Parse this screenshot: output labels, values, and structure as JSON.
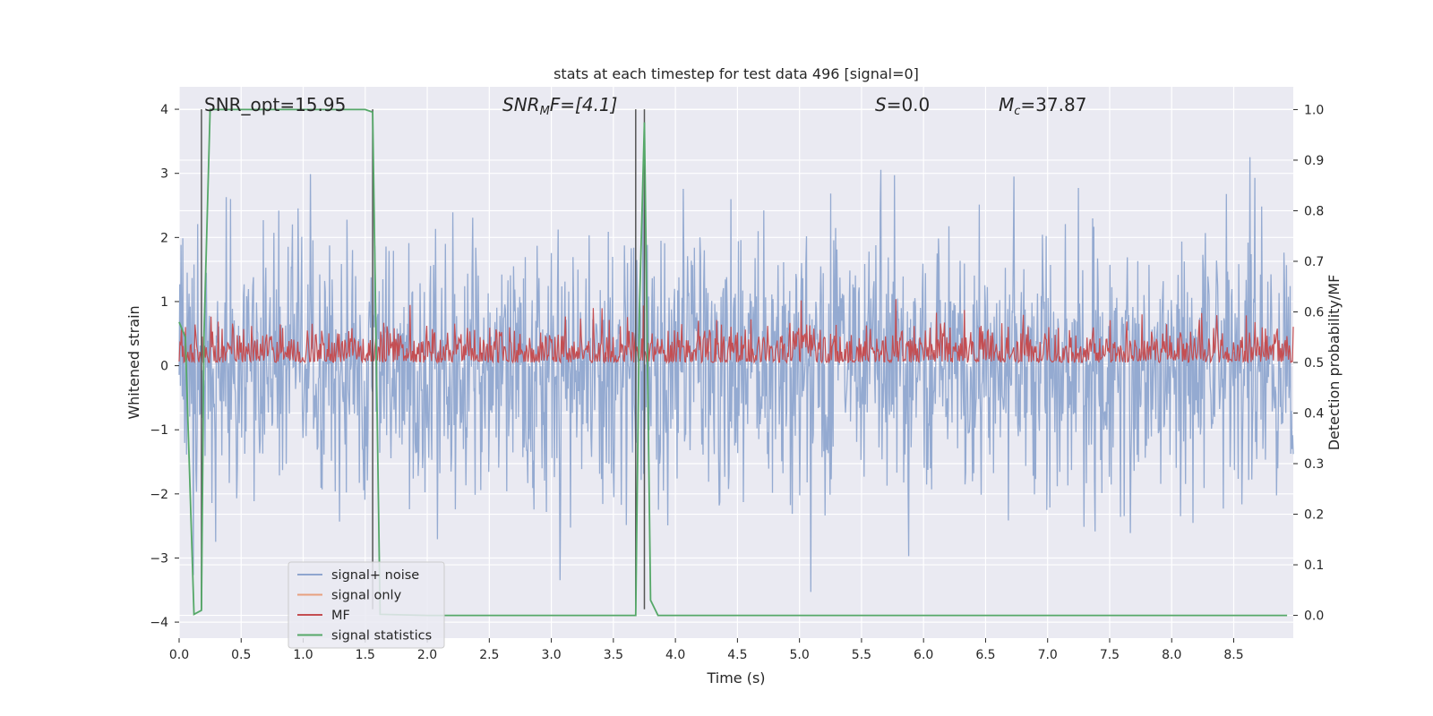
{
  "chart_data": {
    "type": "line",
    "title": "stats at each timestep for test data 496 [signal=0]",
    "xlabel": "Time (s)",
    "ylabel": "Whitened strain",
    "y2label": "Detection probability/MF",
    "xlim": [
      0.0,
      8.98
    ],
    "ylim": [
      -4.25,
      4.35
    ],
    "y2lim": [
      -0.045,
      1.045
    ],
    "xticks": [
      "0.0",
      "0.5",
      "1.0",
      "1.5",
      "2.0",
      "2.5",
      "3.0",
      "3.5",
      "4.0",
      "4.5",
      "5.0",
      "5.5",
      "6.0",
      "6.5",
      "7.0",
      "7.5",
      "8.0",
      "8.5"
    ],
    "yticks": [
      "4",
      "3",
      "2",
      "1",
      "0",
      "−1",
      "−2",
      "−3",
      "−4"
    ],
    "y2ticks": [
      "1.0",
      "0.9",
      "0.8",
      "0.7",
      "0.6",
      "0.5",
      "0.4",
      "0.3",
      "0.2",
      "0.1",
      "0.0"
    ],
    "grid": true,
    "legend_position": "lower-left",
    "annotations": {
      "snr_opt": "SNR_opt=15.95",
      "snr_mf_main": "SNR",
      "snr_mf_sub": "M",
      "snr_mf_rest": "F=[4.1]",
      "s_label": "S",
      "s_value": "=0.0",
      "mc_main": "M",
      "mc_sub": "c",
      "mc_value": "=37.87"
    },
    "markers_x": [
      0.18,
      1.56,
      3.68,
      3.75
    ],
    "colors": {
      "noise": "#8fa6cf",
      "signal_only": "#e8a07f",
      "mf": "#c44e52",
      "stats": "#55a868",
      "marker": "#555555",
      "plot_bg": "#eaeaf2",
      "grid": "#ffffff"
    },
    "series": [
      {
        "name": "signal+ noise",
        "description_values": "whitened noise, approx range -3.8 to 4.0",
        "seed": 496,
        "sigma": 1.0
      },
      {
        "name": "signal only",
        "values": []
      },
      {
        "name": "MF",
        "axis": "y2",
        "base": 0.52,
        "spread_low": 0.5,
        "spread_high": 0.64
      },
      {
        "name": "signal statistics",
        "axis": "y2",
        "x": [
          0.0,
          0.05,
          0.12,
          0.18,
          0.2,
          0.25,
          0.5,
          1.0,
          1.5,
          1.56,
          1.62,
          2.0,
          3.0,
          3.68,
          3.71,
          3.75,
          3.8,
          3.86,
          4.0,
          5.0,
          6.0,
          7.0,
          8.0,
          8.93
        ],
        "y": [
          0.58,
          0.55,
          0.002,
          0.01,
          0.55,
          1.0,
          1.0,
          1.0,
          1.0,
          0.995,
          0.002,
          0.0,
          0.0,
          0.0,
          0.6,
          0.975,
          0.03,
          0.0,
          0.0,
          0.0,
          0.0,
          0.0,
          0.0,
          0.0
        ]
      }
    ]
  },
  "legend": [
    {
      "label": "signal+ noise",
      "color": "#8fa6cf"
    },
    {
      "label": "signal only",
      "color": "#e8a07f"
    },
    {
      "label": "MF",
      "color": "#c44e52"
    },
    {
      "label": "signal statistics",
      "color": "#55a868"
    }
  ]
}
